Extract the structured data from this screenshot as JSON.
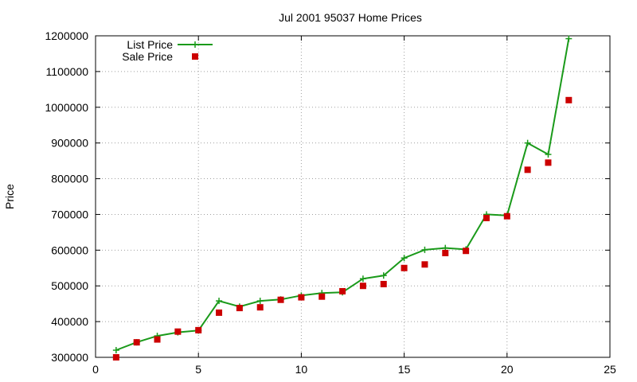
{
  "chart_data": {
    "type": "line",
    "title": "Jul 2001 95037 Home Prices",
    "xlabel": "",
    "ylabel": "Price",
    "xlim": [
      0,
      25
    ],
    "ylim": [
      300000,
      1200000
    ],
    "x_ticks": [
      "0",
      "5",
      "10",
      "15",
      "20",
      "25"
    ],
    "y_ticks": [
      "300000",
      "400000",
      "500000",
      "600000",
      "700000",
      "800000",
      "900000",
      "1000000",
      "1100000",
      "1200000"
    ],
    "grid": true,
    "legend_position": "top-left",
    "x": [
      1,
      2,
      3,
      4,
      5,
      6,
      7,
      8,
      9,
      10,
      11,
      12,
      13,
      14,
      15,
      16,
      17,
      18,
      19,
      20,
      21,
      22,
      23
    ],
    "series": [
      {
        "name": "List Price",
        "style": "lines+crosses",
        "color": "#1a9a1a",
        "values": [
          320000,
          342000,
          360000,
          370000,
          375000,
          458000,
          442000,
          458000,
          462000,
          473000,
          480000,
          482000,
          520000,
          529000,
          578000,
          601000,
          606000,
          602000,
          700000,
          697000,
          900000,
          868000,
          1192000
        ]
      },
      {
        "name": "Sale Price",
        "style": "points-square",
        "color": "#cc0000",
        "values": [
          300000,
          342000,
          350000,
          372000,
          376000,
          425000,
          438000,
          440000,
          461000,
          468000,
          470000,
          485000,
          500000,
          505000,
          550000,
          560000,
          592000,
          598000,
          690000,
          695000,
          825000,
          845000,
          1020000
        ]
      }
    ]
  }
}
